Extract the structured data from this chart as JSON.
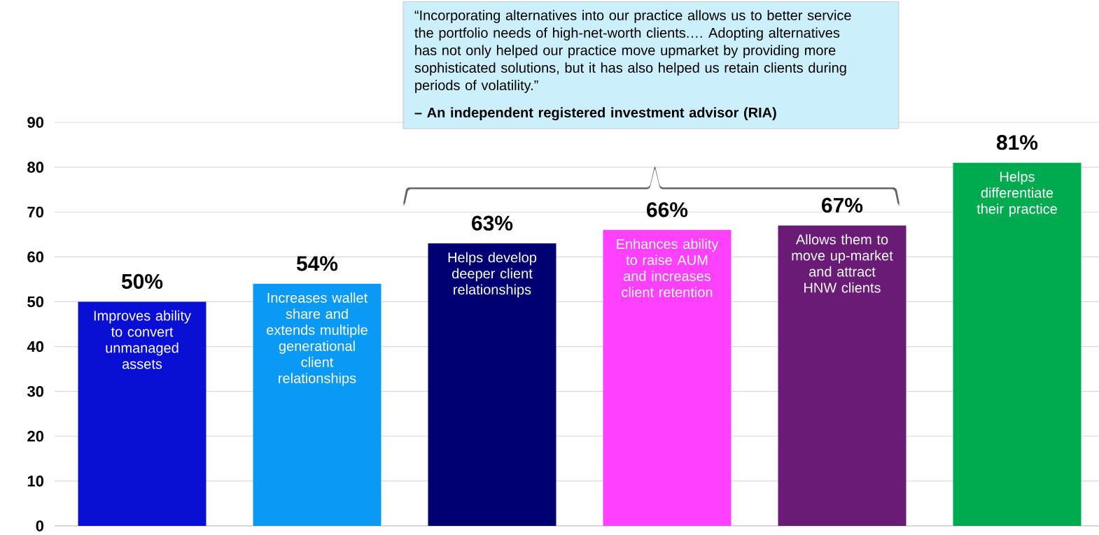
{
  "chart_data": {
    "type": "bar",
    "categories": [
      "Improves ability to convert unmanaged assets",
      "Increases wallet share and extends multiple generational client relationships",
      "Helps develop deeper client relationships",
      "Enhances ability to raise AUM and increases client retention",
      "Allows them to move up-market and attract HNW clients",
      "Helps differentiate their practice"
    ],
    "values": [
      50,
      54,
      63,
      66,
      67,
      81
    ],
    "value_labels": [
      "50%",
      "54%",
      "63%",
      "66%",
      "67%",
      "81%"
    ],
    "colors": [
      "#0a0fd4",
      "#0b99f6",
      "#000073",
      "#ff40ff",
      "#6a1b76",
      "#00aa4f"
    ],
    "ylim": [
      0,
      90
    ],
    "yticks": [
      0,
      10,
      20,
      30,
      40,
      50,
      60,
      70,
      80,
      90
    ],
    "grid": "y",
    "annotations": [
      "“Incorporating alternatives into our practice allows us to better service the portfolio needs of high-net-worth clients.… Adopting alternatives has not only helped our practice move upmarket by providing more sophisticated solutions, but it has also helped us retain clients during periods of volatility.”",
      "– An independent registered investment advisor (RIA)"
    ]
  }
}
